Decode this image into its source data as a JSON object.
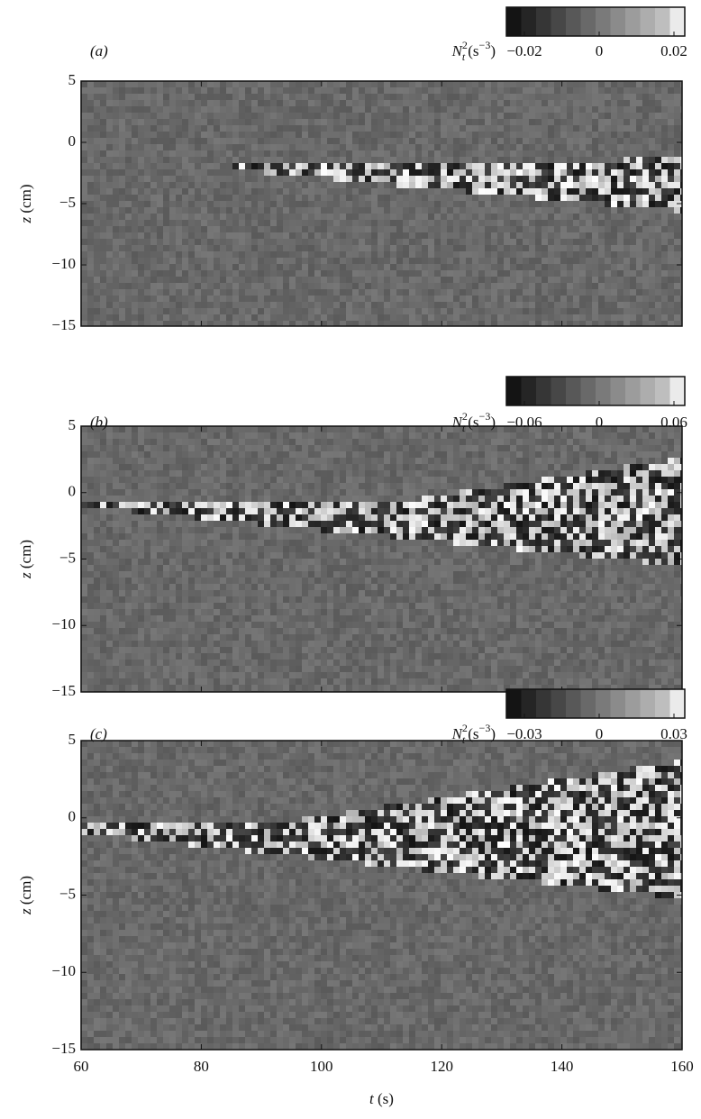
{
  "chart_data": [
    {
      "type": "heatmap",
      "panel_label": "(a)",
      "colorbar": {
        "label": [
          "N",
          "2",
          "t",
          "(s",
          "−3",
          ")"
        ],
        "clim": [
          -0.02,
          0.02
        ],
        "ticks": [
          {
            "value": -0.02,
            "label": "−0.02"
          },
          0,
          0.02
        ]
      },
      "ylabel": [
        "z",
        "(cm)"
      ],
      "ylim": [
        -15,
        5
      ],
      "yticks": [
        {
          "value": -15,
          "label": "−15"
        },
        {
          "value": -10,
          "label": "−10"
        },
        {
          "value": -5,
          "label": "−5"
        },
        0,
        5
      ],
      "xlim": [
        60,
        160
      ],
      "xticks": [
        60,
        80,
        100,
        120,
        140,
        160
      ],
      "xtick_labels": false
    },
    {
      "type": "heatmap",
      "panel_label": "(b)",
      "colorbar": {
        "label": [
          "N",
          "2",
          "t",
          "(s",
          "−3",
          ")"
        ],
        "clim": [
          -0.06,
          0.06
        ],
        "ticks": [
          {
            "value": -0.06,
            "label": "−0.06"
          },
          0,
          0.06
        ]
      },
      "ylabel": [
        "z",
        "(cm)"
      ],
      "ylim": [
        -15,
        5
      ],
      "yticks": [
        {
          "value": -15,
          "label": "−15"
        },
        {
          "value": -10,
          "label": "−10"
        },
        {
          "value": -5,
          "label": "−5"
        },
        0,
        5
      ],
      "xlim": [
        60,
        160
      ],
      "xticks": [
        60,
        80,
        100,
        120,
        140,
        160
      ],
      "xtick_labels": false
    },
    {
      "type": "heatmap",
      "panel_label": "(c)",
      "colorbar": {
        "label": [
          "N",
          "2",
          "t",
          "(s",
          "−3",
          ")"
        ],
        "clim": [
          -0.03,
          0.03
        ],
        "ticks": [
          {
            "value": -0.03,
            "label": "−0.03"
          },
          0,
          0.03
        ]
      },
      "ylabel": [
        "z",
        "(cm)"
      ],
      "ylim": [
        -15,
        5
      ],
      "yticks": [
        {
          "value": -15,
          "label": "−15"
        },
        {
          "value": -10,
          "label": "−10"
        },
        {
          "value": -5,
          "label": "−5"
        },
        0,
        5
      ],
      "xlim": [
        60,
        160
      ],
      "xticks": [
        60,
        80,
        100,
        120,
        140,
        160
      ],
      "xtick_labels": true,
      "xlabel": [
        "t",
        "(s)"
      ]
    }
  ]
}
